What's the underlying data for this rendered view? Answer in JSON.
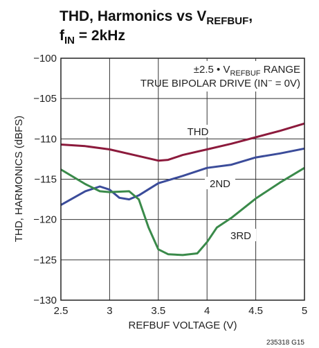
{
  "chart_data": {
    "type": "line",
    "title": {
      "line1": [
        "THD, Harmonics vs V",
        "REFBUF",
        ","
      ],
      "line2": [
        "f",
        "IN",
        " = 2kHz"
      ]
    },
    "annotations": {
      "range": [
        "±2.5 • V",
        "REFBUF",
        " RANGE"
      ],
      "drive": [
        "TRUE BIPOLAR DRIVE (IN",
        "−",
        " = 0V)"
      ]
    },
    "xlabel": "REFBUF VOLTAGE (V)",
    "ylabel": "THD, HARMONICS (dBFS)",
    "footnote": "235318 G15",
    "xlim": [
      2.5,
      5
    ],
    "ylim": [
      -130,
      -100
    ],
    "xticks": [
      2.5,
      3,
      3.5,
      4,
      4.5,
      5
    ],
    "yticks": [
      {
        "value": -130,
        "label": "−130"
      },
      {
        "value": -125,
        "label": "−125"
      },
      {
        "value": -120,
        "label": "−120"
      },
      {
        "value": -115,
        "label": "−115"
      },
      {
        "value": -110,
        "label": "−110"
      },
      {
        "value": -105,
        "label": "−105"
      },
      {
        "value": -100,
        "label": "−100"
      }
    ],
    "grid": true,
    "series": [
      {
        "name": "THD",
        "color": "#8c1a3c",
        "x": [
          2.5,
          2.75,
          3,
          3.25,
          3.5,
          3.6,
          3.75,
          4,
          4.25,
          4.5,
          4.75,
          5
        ],
        "values": [
          -110.7,
          -110.9,
          -111.3,
          -112.0,
          -112.7,
          -112.6,
          -112.0,
          -111.3,
          -110.6,
          -109.8,
          -109.0,
          -108.1
        ]
      },
      {
        "name": "2ND",
        "color": "#3b4c9a",
        "x": [
          2.5,
          2.75,
          2.9,
          3,
          3.1,
          3.2,
          3.3,
          3.5,
          3.75,
          4,
          4.25,
          4.5,
          4.75,
          5
        ],
        "values": [
          -118.2,
          -116.5,
          -115.9,
          -116.3,
          -117.3,
          -117.5,
          -117.0,
          -115.5,
          -114.6,
          -113.6,
          -113.2,
          -112.3,
          -111.8,
          -111.2
        ]
      },
      {
        "name": "3RD",
        "color": "#3a8a4a",
        "x": [
          2.5,
          2.75,
          2.9,
          3,
          3.2,
          3.3,
          3.4,
          3.5,
          3.6,
          3.75,
          3.9,
          4,
          4.1,
          4.25,
          4.5,
          4.75,
          5
        ],
        "values": [
          -113.8,
          -115.6,
          -116.5,
          -116.6,
          -116.5,
          -117.5,
          -121.0,
          -123.7,
          -124.3,
          -124.4,
          -124.2,
          -122.8,
          -121.0,
          -119.8,
          -117.4,
          -115.4,
          -113.6
        ]
      }
    ]
  }
}
